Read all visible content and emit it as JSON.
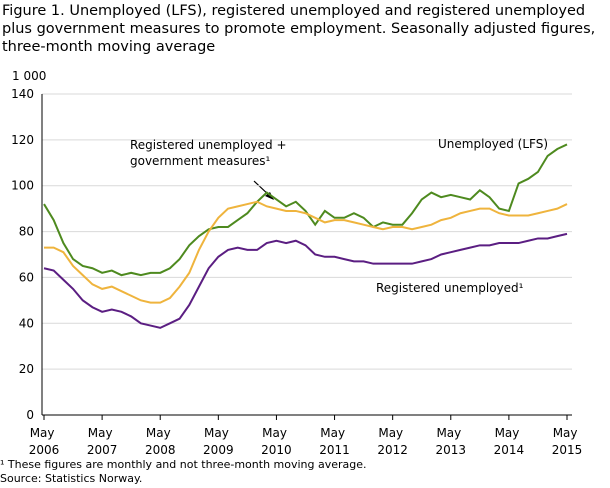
{
  "chart_data": {
    "type": "line",
    "title": "Figure 1. Unemployed (LFS), registered unemployed and registered unemployed plus government measures to promote employment. Seasonally adjusted figures, three-month moving average",
    "y_unit_label": "1 000",
    "footnote": "¹ These figures are monthly and not three-month moving average.",
    "source": "Source: Statistics Norway.",
    "x": [
      "2006-05",
      "2006-07",
      "2006-09",
      "2006-11",
      "2007-01",
      "2007-03",
      "2007-05",
      "2007-07",
      "2007-09",
      "2007-11",
      "2008-01",
      "2008-03",
      "2008-05",
      "2008-07",
      "2008-09",
      "2008-11",
      "2009-01",
      "2009-03",
      "2009-05",
      "2009-07",
      "2009-09",
      "2009-11",
      "2010-01",
      "2010-03",
      "2010-05",
      "2010-07",
      "2010-09",
      "2010-11",
      "2011-01",
      "2011-03",
      "2011-05",
      "2011-07",
      "2011-09",
      "2011-11",
      "2012-01",
      "2012-03",
      "2012-05",
      "2012-07",
      "2012-09",
      "2012-11",
      "2013-01",
      "2013-03",
      "2013-05",
      "2013-07",
      "2013-09",
      "2013-11",
      "2014-01",
      "2014-03",
      "2014-05",
      "2014-07",
      "2014-09",
      "2014-11",
      "2015-01",
      "2015-03",
      "2015-05"
    ],
    "series": [
      {
        "name": "Unemployed (LFS)",
        "color": "#4e8a1f",
        "values": [
          92,
          85,
          75,
          68,
          65,
          64,
          62,
          63,
          61,
          62,
          61,
          62,
          62,
          64,
          68,
          74,
          78,
          81,
          82,
          82,
          85,
          88,
          93,
          97,
          94,
          91,
          93,
          89,
          83,
          89,
          86,
          86,
          88,
          86,
          82,
          84,
          83,
          83,
          88,
          94,
          97,
          95,
          96,
          95,
          94,
          98,
          95,
          90,
          89,
          101,
          103,
          106,
          113,
          116,
          118
        ]
      },
      {
        "name": "Registered unemployed + government measures¹",
        "color": "#efb43d",
        "values": [
          73,
          73,
          71,
          65,
          61,
          57,
          55,
          56,
          54,
          52,
          50,
          49,
          49,
          51,
          56,
          62,
          72,
          80,
          86,
          90,
          91,
          92,
          93,
          91,
          90,
          89,
          89,
          88,
          86,
          84,
          85,
          85,
          84,
          83,
          82,
          81,
          82,
          82,
          81,
          82,
          83,
          85,
          86,
          88,
          89,
          90,
          90,
          88,
          87,
          87,
          87,
          88,
          89,
          90,
          92
        ]
      },
      {
        "name": "Registered unemployed¹",
        "color": "#5b1e82",
        "values": [
          64,
          63,
          59,
          55,
          50,
          47,
          45,
          46,
          45,
          43,
          40,
          39,
          38,
          40,
          42,
          48,
          56,
          64,
          69,
          72,
          73,
          72,
          72,
          75,
          76,
          75,
          76,
          74,
          70,
          69,
          69,
          68,
          67,
          67,
          66,
          66,
          66,
          66,
          66,
          67,
          68,
          70,
          71,
          72,
          73,
          74,
          74,
          75,
          75,
          75,
          76,
          77,
          77,
          78,
          79
        ]
      }
    ],
    "ylim": [
      0,
      140
    ],
    "yticks": [
      0,
      20,
      40,
      60,
      80,
      100,
      120,
      140
    ],
    "grid": true,
    "xticks": [
      {
        "value": "2006-05",
        "label": "May 2006"
      },
      {
        "value": "2007-05",
        "label": "May 2007"
      },
      {
        "value": "2008-05",
        "label": "May 2008"
      },
      {
        "value": "2009-05",
        "label": "May 2009"
      },
      {
        "value": "2010-05",
        "label": "May 2010"
      },
      {
        "value": "2011-05",
        "label": "May 2011"
      },
      {
        "value": "2012-05",
        "label": "May 2012"
      },
      {
        "value": "2013-05",
        "label": "May 2013"
      },
      {
        "value": "2014-05",
        "label": "May 2014"
      },
      {
        "value": "2015-05",
        "label": "May 2015"
      }
    ]
  }
}
